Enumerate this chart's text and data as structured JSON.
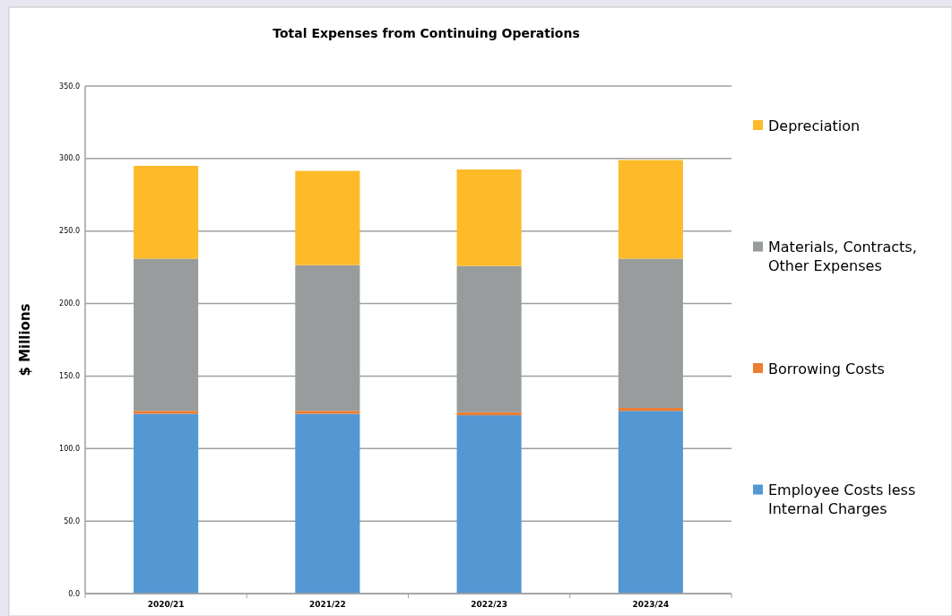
{
  "chart_data": {
    "type": "bar",
    "title": "Total  Expenses from Continuing Operations",
    "ylabel": "$ Millions",
    "categories": [
      "2020/21",
      "2021/22",
      "2022/23",
      "2023/24"
    ],
    "series": [
      {
        "name": "Employee Costs less Internal Charges",
        "color": "#5398d3",
        "values": [
          124,
          124,
          123,
          126
        ]
      },
      {
        "name": "Borrowing Costs",
        "color": "#ed7d31",
        "values": [
          2,
          2,
          2,
          2
        ]
      },
      {
        "name": "Materials, Contracts, Other Expenses",
        "color": "#999c9c",
        "values": [
          105,
          100.5,
          101,
          103
        ]
      },
      {
        "name": "Depreciation",
        "color": "#fdbb2a",
        "values": [
          64,
          65,
          66.5,
          68
        ]
      }
    ],
    "stacked": true,
    "ylim": [
      0,
      350
    ],
    "yticks": [
      {
        "value": 0,
        "label": "0.0"
      },
      {
        "value": 50,
        "label": "50.0"
      },
      {
        "value": 100,
        "label": "100.0"
      },
      {
        "value": 150,
        "label": "150.0"
      },
      {
        "value": 200,
        "label": "200.0"
      },
      {
        "value": 250,
        "label": "250.0"
      },
      {
        "value": 300,
        "label": "300.0"
      },
      {
        "value": 350,
        "label": "350.0"
      }
    ],
    "grid": "y",
    "legend": "right"
  }
}
